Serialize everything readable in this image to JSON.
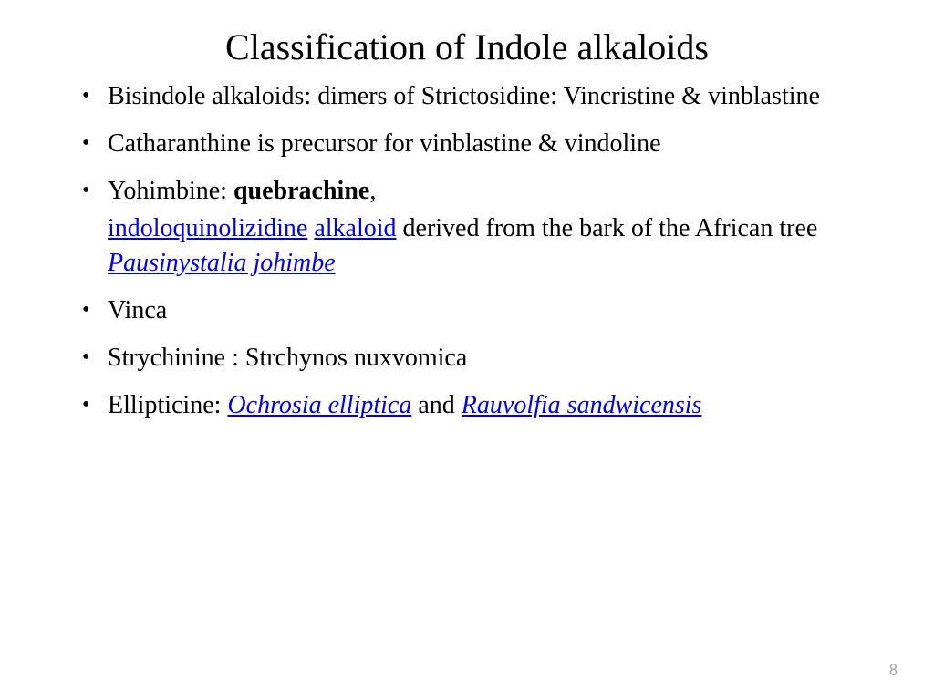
{
  "colors": {
    "background": "#ffffff",
    "text": "#000000",
    "link": "#0000ee",
    "page_number": "#a6a6a6"
  },
  "typography": {
    "title_fontsize": 40,
    "body_fontsize": 28,
    "font_family": "Times New Roman"
  },
  "title": "Classification of Indole alkaloids",
  "bullets": {
    "b1": "Bisindole alkaloids: dimers of Strictosidine: Vincristine & vinblastine",
    "b2": "Catharanthine is precursor for vinblastine & vindoline",
    "b3_prefix": "Yohimbine: ",
    "b3_bold": "quebrachine",
    "b3_suffix": ",",
    "b3_sub_link1": "indoloquinolizidine",
    "b3_sub_sp1": " ",
    "b3_sub_link2": "alkaloid",
    "b3_sub_mid": " derived from the bark of the African tree ",
    "b3_sub_link3": "Pausinystalia johimbe",
    "b4": "Vinca",
    "b5": "Strychinine : Strchynos nuxvomica",
    "b6_prefix": "Ellipticine:  ",
    "b6_link1": "Ochrosia elliptica",
    "b6_mid": " and ",
    "b6_link2": "Rauvolfia sandwicensis"
  },
  "page_number": "8"
}
